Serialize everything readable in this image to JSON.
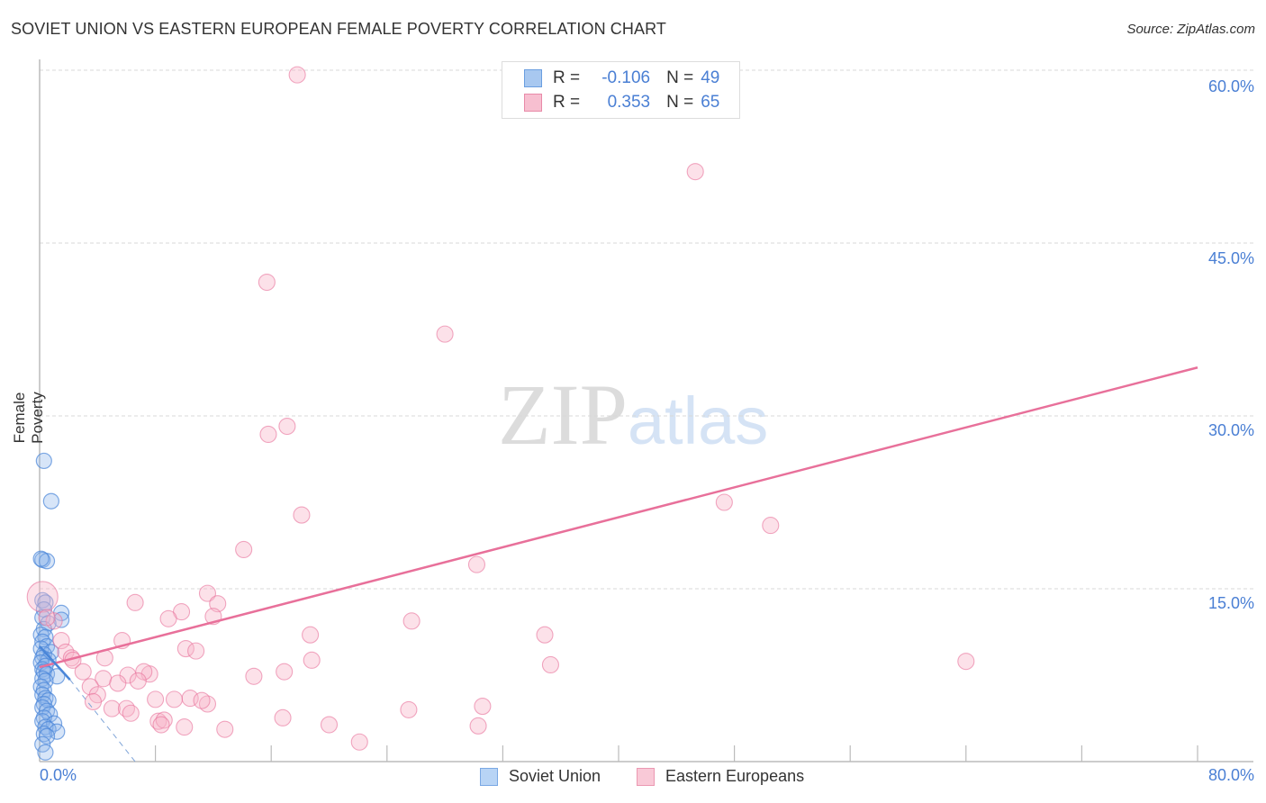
{
  "header": {
    "title": "SOVIET UNION VS EASTERN EUROPEAN FEMALE POVERTY CORRELATION CHART",
    "source": "Source: ZipAtlas.com"
  },
  "legend": {
    "rows": [
      {
        "r_label": "R =",
        "r_value": "-0.106",
        "n_label": "N =",
        "n_value": "49",
        "color": "#a8c8f0",
        "border": "#6a9ee0"
      },
      {
        "r_label": "R =",
        "r_value": "0.353",
        "n_label": "N =",
        "n_value": "65",
        "color": "#f7bfd0",
        "border": "#e88aa8"
      }
    ]
  },
  "axes": {
    "y_title": "Female Poverty",
    "y_ticks": [
      "60.0%",
      "45.0%",
      "30.0%",
      "15.0%"
    ],
    "x_min_label": "0.0%",
    "x_max_label": "80.0%"
  },
  "bottom_legend": {
    "items": [
      {
        "label": "Soviet Union",
        "color": "#b8d4f5",
        "border": "#7aa8e4"
      },
      {
        "label": "Eastern Europeans",
        "color": "#f9c9d7",
        "border": "#eb98b2"
      }
    ]
  },
  "watermark": {
    "zip": "ZIP",
    "atlas": "atlas"
  },
  "colors": {
    "blue": "#4a86d8",
    "pink": "#e8709a",
    "axis_text": "#4a7fd4"
  },
  "chart_data": {
    "type": "scatter",
    "title": "SOVIET UNION VS EASTERN EUROPEAN FEMALE POVERTY CORRELATION CHART",
    "xlabel": "",
    "ylabel": "Female Poverty",
    "xlim": [
      0,
      80
    ],
    "ylim": [
      0,
      62
    ],
    "x_tick_labels": [
      "0.0%",
      "80.0%"
    ],
    "y_tick_labels": [
      "15.0%",
      "30.0%",
      "45.0%",
      "60.0%"
    ],
    "grid": true,
    "legend_position": "top-center and bottom",
    "series": [
      {
        "name": "Soviet Union",
        "r": -0.106,
        "n": 49,
        "color": "#4a86d8",
        "trend": {
          "x": [
            0,
            2.1
          ],
          "y": [
            10.0,
            7.1
          ],
          "dashed_extension_to": [
            6.6,
            0
          ]
        },
        "points": [
          [
            0.3,
            26.1
          ],
          [
            0.8,
            22.6
          ],
          [
            0.2,
            17.5
          ],
          [
            0.5,
            17.4
          ],
          [
            0.1,
            17.6
          ],
          [
            0.2,
            14.0
          ],
          [
            0.4,
            13.8
          ],
          [
            0.3,
            13.2
          ],
          [
            1.5,
            12.9
          ],
          [
            1.5,
            12.3
          ],
          [
            0.2,
            12.5
          ],
          [
            0.6,
            12.0
          ],
          [
            0.3,
            11.5
          ],
          [
            0.1,
            11.0
          ],
          [
            0.4,
            10.8
          ],
          [
            0.2,
            10.4
          ],
          [
            0.5,
            10.0
          ],
          [
            0.1,
            9.8
          ],
          [
            0.8,
            9.5
          ],
          [
            0.3,
            9.3
          ],
          [
            0.2,
            9.0
          ],
          [
            0.6,
            8.8
          ],
          [
            0.1,
            8.6
          ],
          [
            0.4,
            8.3
          ],
          [
            0.2,
            8.0
          ],
          [
            0.3,
            7.8
          ],
          [
            0.5,
            7.6
          ],
          [
            1.2,
            7.4
          ],
          [
            0.2,
            7.2
          ],
          [
            0.4,
            7.0
          ],
          [
            0.1,
            6.5
          ],
          [
            0.3,
            6.2
          ],
          [
            0.2,
            5.8
          ],
          [
            0.4,
            5.5
          ],
          [
            0.6,
            5.3
          ],
          [
            0.3,
            5.0
          ],
          [
            0.2,
            4.7
          ],
          [
            0.5,
            4.4
          ],
          [
            0.7,
            4.1
          ],
          [
            0.3,
            3.8
          ],
          [
            0.2,
            3.5
          ],
          [
            1.0,
            3.3
          ],
          [
            0.4,
            3.0
          ],
          [
            0.6,
            2.8
          ],
          [
            1.2,
            2.6
          ],
          [
            0.3,
            2.4
          ],
          [
            0.5,
            2.2
          ],
          [
            0.2,
            1.5
          ],
          [
            0.4,
            0.8
          ]
        ]
      },
      {
        "name": "Eastern Europeans",
        "r": 0.353,
        "n": 65,
        "color": "#e8709a",
        "trend": {
          "x": [
            0,
            80
          ],
          "y": [
            8.2,
            34.2
          ]
        },
        "points": [
          [
            17.8,
            59.6
          ],
          [
            45.3,
            51.2
          ],
          [
            15.7,
            41.6
          ],
          [
            28.0,
            37.1
          ],
          [
            17.1,
            29.1
          ],
          [
            15.8,
            28.4
          ],
          [
            18.1,
            21.4
          ],
          [
            47.3,
            22.5
          ],
          [
            50.5,
            20.5
          ],
          [
            14.1,
            18.4
          ],
          [
            30.2,
            17.1
          ],
          [
            0.2,
            14.3
          ],
          [
            6.6,
            13.8
          ],
          [
            11.6,
            14.6
          ],
          [
            12.3,
            13.7
          ],
          [
            9.8,
            13.0
          ],
          [
            8.9,
            12.4
          ],
          [
            12.0,
            12.6
          ],
          [
            25.7,
            12.2
          ],
          [
            1.0,
            12.2
          ],
          [
            0.5,
            12.5
          ],
          [
            18.7,
            11.0
          ],
          [
            34.9,
            11.0
          ],
          [
            5.7,
            10.5
          ],
          [
            1.5,
            10.5
          ],
          [
            10.1,
            9.8
          ],
          [
            10.8,
            9.6
          ],
          [
            1.8,
            9.5
          ],
          [
            2.2,
            9.0
          ],
          [
            4.5,
            9.0
          ],
          [
            2.3,
            8.8
          ],
          [
            18.8,
            8.8
          ],
          [
            35.3,
            8.4
          ],
          [
            64.0,
            8.7
          ],
          [
            3.0,
            7.8
          ],
          [
            6.1,
            7.5
          ],
          [
            7.6,
            7.6
          ],
          [
            7.2,
            7.8
          ],
          [
            14.8,
            7.4
          ],
          [
            16.9,
            7.8
          ],
          [
            4.4,
            7.2
          ],
          [
            3.5,
            6.5
          ],
          [
            5.4,
            6.8
          ],
          [
            6.8,
            7.0
          ],
          [
            4.0,
            5.8
          ],
          [
            8.0,
            5.4
          ],
          [
            10.4,
            5.5
          ],
          [
            11.6,
            5.0
          ],
          [
            11.2,
            5.3
          ],
          [
            9.3,
            5.4
          ],
          [
            5.0,
            4.6
          ],
          [
            6.0,
            4.6
          ],
          [
            25.5,
            4.5
          ],
          [
            30.6,
            4.8
          ],
          [
            8.2,
            3.5
          ],
          [
            8.6,
            3.6
          ],
          [
            16.8,
            3.8
          ],
          [
            10.0,
            3.0
          ],
          [
            12.8,
            2.8
          ],
          [
            20.0,
            3.2
          ],
          [
            22.1,
            1.7
          ],
          [
            30.3,
            3.1
          ],
          [
            8.4,
            3.2
          ],
          [
            6.3,
            4.2
          ],
          [
            3.7,
            5.2
          ]
        ]
      }
    ]
  }
}
